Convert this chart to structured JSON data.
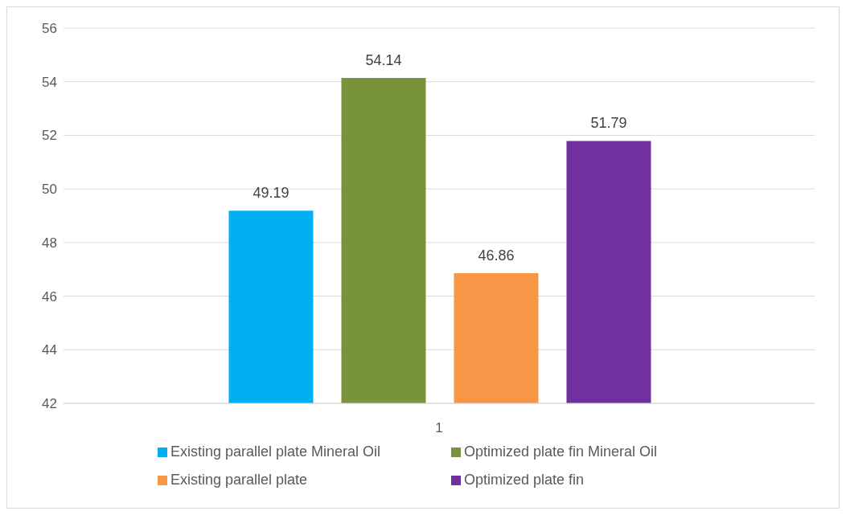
{
  "chart_data": {
    "type": "bar",
    "categories": [
      "1"
    ],
    "series": [
      {
        "name": "Existing parallel plate Mineral Oil",
        "color": "#00b0f0",
        "values": [
          49.19
        ]
      },
      {
        "name": "Optimized plate fin Mineral Oil",
        "color": "#77933c",
        "values": [
          54.14
        ]
      },
      {
        "name": "Existing parallel plate",
        "color": "#f79646",
        "values": [
          46.86
        ]
      },
      {
        "name": "Optimized plate fin",
        "color": "#7030a0",
        "values": [
          51.79
        ]
      }
    ],
    "ylim": [
      42,
      56
    ],
    "yticks": [
      42,
      44,
      46,
      48,
      50,
      52,
      54,
      56
    ],
    "grid": "y",
    "legend": "bottom",
    "data_labels": true
  }
}
